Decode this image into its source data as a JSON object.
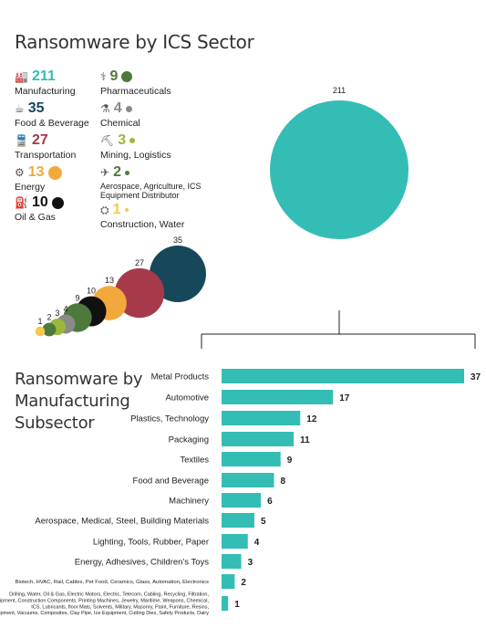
{
  "sector_title": "Ransomware by ICS Sector",
  "subsector_title_lines": [
    "Ransomware by",
    "Manufacturing",
    "Subsector"
  ],
  "colors": {
    "teal": "#34bdb5",
    "navy": "#16485a",
    "crimson": "#a63a4a",
    "orange": "#f2a93b",
    "black": "#111111",
    "green": "#4d7a3c",
    "gray": "#8a8a8a",
    "olive": "#9ab83a",
    "yellow": "#f4c84a"
  },
  "legend": [
    {
      "id": "manufacturing",
      "label": "Manufacturing",
      "count": "211",
      "color": "#34bdb5",
      "icon": "factory-icon",
      "dot": false
    },
    {
      "id": "food",
      "label": "Food & Beverage",
      "count": "35",
      "color": "#16485a",
      "icon": "food-icon",
      "dot": false
    },
    {
      "id": "transportation",
      "label": "Transportation",
      "count": "27",
      "color": "#a63a4a",
      "icon": "train-icon",
      "dot": false
    },
    {
      "id": "energy",
      "label": "Energy",
      "count": "13",
      "color": "#f2a93b",
      "icon": "gear-icon",
      "dot": true
    },
    {
      "id": "oilgas",
      "label": "Oil & Gas",
      "count": "10",
      "color": "#111111",
      "icon": "oil-icon",
      "dot": true
    },
    {
      "id": "pharma",
      "label": "Pharmaceuticals",
      "count": "9",
      "color": "#4d7a3c",
      "icon": "pharma-icon",
      "dot": true
    },
    {
      "id": "chemical",
      "label": "Chemical",
      "count": "4",
      "color": "#8a8a8a",
      "icon": "flask-icon",
      "dot": true
    },
    {
      "id": "mining",
      "label": "Mining, Logistics",
      "count": "3",
      "color": "#9ab83a",
      "icon": "mining-icon",
      "dot": true
    },
    {
      "id": "aero",
      "label": "Aerospace, Agriculture, ICS Equipment Distributor",
      "count": "2",
      "color": "#4d7a3c",
      "icon": "plane-icon",
      "dot": true
    },
    {
      "id": "construction",
      "label": "Construction, Water",
      "count": "1",
      "color": "#f4c84a",
      "icon": "crane-icon",
      "dot": true
    }
  ],
  "chart_data": [
    {
      "type": "bubble",
      "title": "Ransomware by ICS Sector",
      "values": [
        211,
        35,
        27,
        13,
        10,
        9,
        4,
        3,
        2,
        1
      ],
      "colors": [
        "#34bdb5",
        "#16485a",
        "#a63a4a",
        "#f2a93b",
        "#111111",
        "#4d7a3c",
        "#8a8a8a",
        "#9ab83a",
        "#4d7a3c",
        "#f4c84a"
      ]
    },
    {
      "type": "bar",
      "orientation": "horizontal",
      "title": "Ransomware by Manufacturing Subsector",
      "categories": [
        "Metal Products",
        "Automotive",
        "Plastics, Technology",
        "Packaging",
        "Textiles",
        "Food and Beverage",
        "Machinery",
        "Aerospace, Medical, Steel, Building Materials",
        "Lighting, Tools, Rubber, Paper",
        "Energy, Adhesives, Children's Toys",
        "Biotech, HVAC, Rail, Cables, Pet Food, Ceramics, Glass, Automation, Electronics",
        "Drilling, Water, Oil & Gas, Electric Motors, Electric, Telecom, Cabling, Recycling, Filtration, Dental, Aviation, Security Equipment, Construction Components, Printing Machines, Jewelry, Maritime, Weapons, Chemical, ICS, Lubricants, floor Mats, Solvents, Military, Masonry, Paint, Furniture, Resins, Printing, Police Equipment, Vacuums, Composites, Clay Pipe, Ice Equipment, Cutting Dies, Safety Products, Dairy"
      ],
      "values": [
        37,
        17,
        12,
        11,
        9,
        8,
        6,
        5,
        4,
        3,
        2,
        1
      ],
      "color": "#34bdb5",
      "xlim": [
        0,
        37
      ]
    }
  ]
}
